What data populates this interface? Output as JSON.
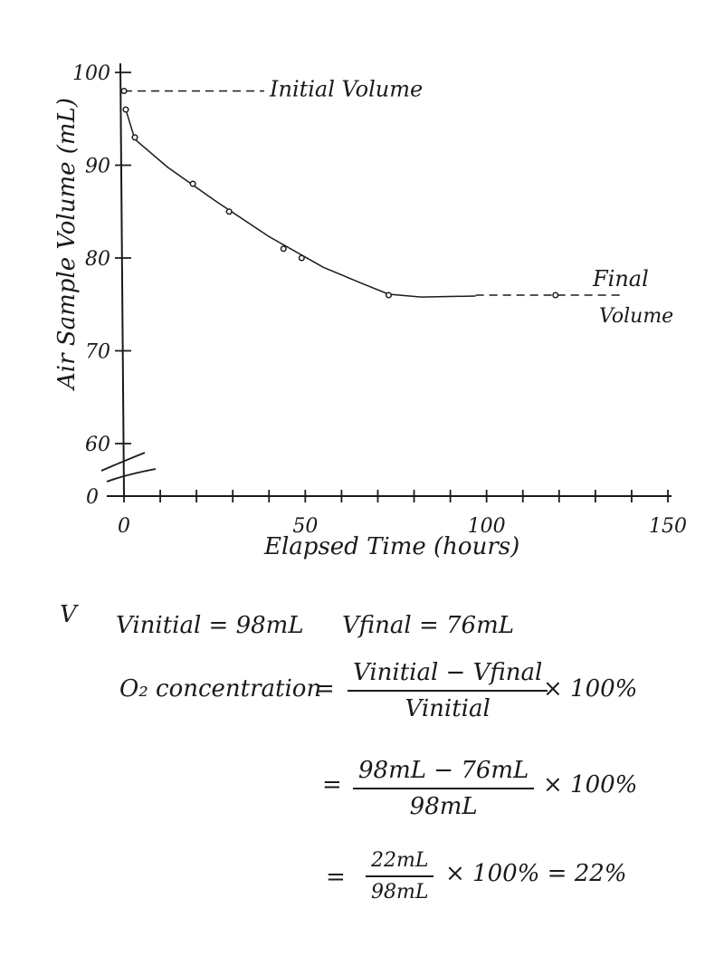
{
  "chart_data": {
    "type": "scatter",
    "xlabel": "Elapsed Time (hours)",
    "ylabel": "Air Sample Volume (mL)",
    "x_ticks": [
      "0",
      "50",
      "100",
      "150"
    ],
    "y_ticks": [
      "60",
      "70",
      "80",
      "90",
      "100"
    ],
    "y_zero_label": "0",
    "xlim": [
      0,
      150
    ],
    "ylim": [
      60,
      100
    ],
    "points": [
      {
        "x": 0,
        "y": 98
      },
      {
        "x": 0.5,
        "y": 96
      },
      {
        "x": 3,
        "y": 93
      },
      {
        "x": 19,
        "y": 88
      },
      {
        "x": 29,
        "y": 85
      },
      {
        "x": 44,
        "y": 81
      },
      {
        "x": 49,
        "y": 80
      },
      {
        "x": 73,
        "y": 76
      },
      {
        "x": 119,
        "y": 76
      }
    ],
    "initial_volume": {
      "y": 98,
      "label": "Initial Volume"
    },
    "final_volume": {
      "y": 76,
      "label_line1": "Final",
      "label_line2": "Volume"
    },
    "grid": false
  },
  "calc": {
    "v_label": "V",
    "v_initial": "Vinitial = 98mL",
    "v_final": "Vfinal = 76mL",
    "o2_label": "O₂ concentration",
    "eq1": "=",
    "frac1_num": "Vinitial − Vfinal",
    "frac1_den": "Vinitial",
    "times1": "× 100%",
    "eq2": "=",
    "frac2_num": "98mL − 76mL",
    "frac2_den": "98mL",
    "times2": "× 100%",
    "eq3": "=",
    "frac3_num": "22mL",
    "frac3_den": "98mL",
    "times3": "× 100%  = 22%"
  }
}
